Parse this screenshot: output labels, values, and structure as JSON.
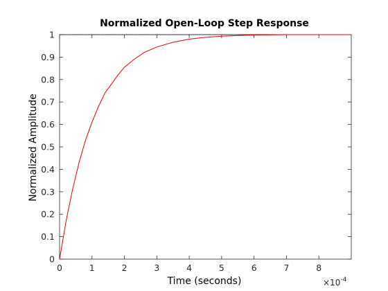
{
  "chart_data": {
    "type": "line",
    "title": "Normalized Open-Loop Step Response",
    "xlabel": "Time (seconds)",
    "ylabel": "Normalized Amplitude",
    "x_multiplier_label": "×10",
    "x_multiplier_exponent": "-4",
    "xlim": [
      0,
      0.0009
    ],
    "ylim": [
      0,
      1
    ],
    "xticks": [
      0,
      0.0001,
      0.0002,
      0.0003,
      0.0004,
      0.0005,
      0.0006,
      0.0007,
      0.0008
    ],
    "xtick_labels": [
      "0",
      "1",
      "2",
      "3",
      "4",
      "5",
      "6",
      "7",
      "8"
    ],
    "yticks": [
      0,
      0.1,
      0.2,
      0.3,
      0.4,
      0.5,
      0.6,
      0.7,
      0.8,
      0.9,
      1
    ],
    "ytick_labels": [
      "0",
      "0.1",
      "0.2",
      "0.3",
      "0.4",
      "0.5",
      "0.6",
      "0.7",
      "0.8",
      "0.9",
      "1"
    ],
    "grid": false,
    "colors": {
      "response": "#e00000",
      "reference": "#000000",
      "axes": "#262626"
    },
    "series": [
      {
        "x": [
          0,
          2e-05,
          4e-05,
          6e-05,
          8e-05,
          0.0001,
          0.00012,
          0.00014,
          0.00016,
          0.00018,
          0.0002,
          0.00023,
          0.00026,
          0.0003,
          0.00035,
          0.0004,
          0.00045,
          0.0005,
          0.00055,
          0.0006,
          0.00065,
          0.0007,
          0.00075,
          0.0008,
          0.00085,
          0.0009
        ],
        "values": [
          0,
          0.17,
          0.31,
          0.43,
          0.53,
          0.61,
          0.68,
          0.74,
          0.78,
          0.82,
          0.855,
          0.89,
          0.92,
          0.945,
          0.966,
          0.98,
          0.988,
          0.993,
          0.996,
          0.998,
          0.999,
          1,
          1,
          1,
          1,
          1
        ]
      },
      {
        "x": [
          0,
          0.0009
        ],
        "values": [
          1,
          1
        ]
      }
    ]
  }
}
